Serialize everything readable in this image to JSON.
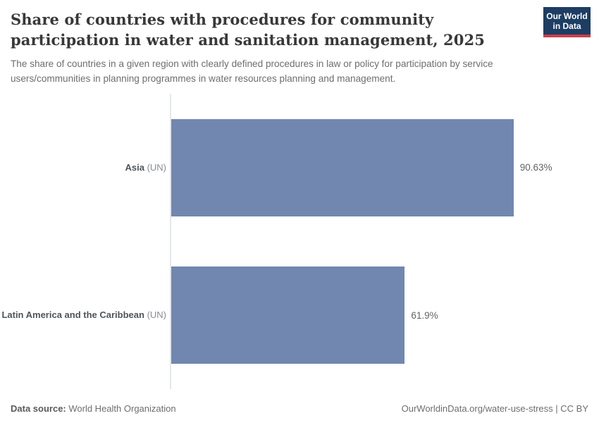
{
  "header": {
    "title": "Share of countries with procedures for community participation in water and sanitation management, 2025",
    "subtitle": "The share of countries in a given region with clearly defined procedures in law or policy for participation by service users/communities in planning programmes in water resources planning and management.",
    "logo": {
      "line1": "Our World",
      "line2": "in Data",
      "bg_color": "#1d3d63",
      "accent_color": "#cc3e4a"
    }
  },
  "chart_data": {
    "type": "bar",
    "orientation": "horizontal",
    "title": "Share of countries with procedures for community participation in water and sanitation management, 2025",
    "categories": [
      "Asia (UN)",
      "Latin America and the Caribbean (UN)"
    ],
    "values": [
      90.63,
      61.9
    ],
    "value_labels": [
      "90.63%",
      "61.9%"
    ],
    "xlim": [
      0,
      100
    ],
    "grid": false,
    "legend": "none",
    "bar_color": "#7187af",
    "axis_color": "#e4e7ea"
  },
  "rows": [
    {
      "name": "Asia",
      "suffix": " (UN)",
      "value": 90.63,
      "value_label": "90.63%"
    },
    {
      "name": "Latin America and the Caribbean",
      "suffix": " (UN)",
      "value": 61.9,
      "value_label": "61.9%"
    }
  ],
  "footer": {
    "source_label": "Data source:",
    "source_value": " World Health Organization",
    "link": "OurWorldinData.org/water-use-stress | CC BY"
  }
}
